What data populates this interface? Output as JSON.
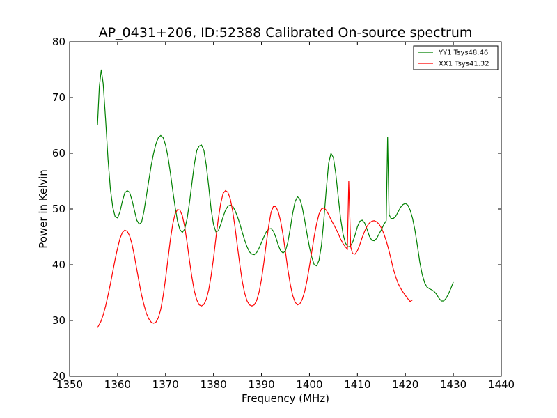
{
  "chart_data": {
    "type": "line",
    "title": "AP_0431+206, ID:52388 Calibrated On-source spectrum",
    "xlabel": "Frequency (MHz)",
    "ylabel": "Power in Kelvin",
    "xlim": [
      1350,
      1440
    ],
    "ylim": [
      20,
      80
    ],
    "x_ticks": [
      1350,
      1360,
      1370,
      1380,
      1390,
      1400,
      1410,
      1420,
      1430,
      1440
    ],
    "y_ticks": [
      20,
      30,
      40,
      50,
      60,
      70,
      80
    ],
    "grid": false,
    "legend_position": "top-right",
    "series": [
      {
        "name": "YY1 Tsys48.46",
        "color": "#008000",
        "points": [
          [
            1355.8,
            65
          ],
          [
            1356.2,
            72
          ],
          [
            1356.6,
            75
          ],
          [
            1357.0,
            72.5
          ],
          [
            1357.5,
            66
          ],
          [
            1358.0,
            59
          ],
          [
            1358.5,
            53.5
          ],
          [
            1359.0,
            50.3
          ],
          [
            1359.5,
            48.6
          ],
          [
            1360.0,
            48.4
          ],
          [
            1360.5,
            49.5
          ],
          [
            1361.0,
            51.4
          ],
          [
            1361.5,
            52.9
          ],
          [
            1362.0,
            53.3
          ],
          [
            1362.5,
            53.0
          ],
          [
            1363.0,
            51.6
          ],
          [
            1363.5,
            49.8
          ],
          [
            1364.0,
            48.0
          ],
          [
            1364.5,
            47.3
          ],
          [
            1365.0,
            47.6
          ],
          [
            1365.5,
            49.6
          ],
          [
            1366.0,
            52.3
          ],
          [
            1366.5,
            55.1
          ],
          [
            1367.0,
            57.8
          ],
          [
            1367.5,
            60.0
          ],
          [
            1368.0,
            61.7
          ],
          [
            1368.5,
            62.8
          ],
          [
            1369.0,
            63.2
          ],
          [
            1369.5,
            62.8
          ],
          [
            1370.0,
            61.5
          ],
          [
            1370.5,
            59.4
          ],
          [
            1371.0,
            56.5
          ],
          [
            1371.5,
            53.3
          ],
          [
            1372.0,
            50.3
          ],
          [
            1372.5,
            47.8
          ],
          [
            1373.0,
            46.3
          ],
          [
            1373.5,
            45.8
          ],
          [
            1374.0,
            46.4
          ],
          [
            1374.5,
            48.3
          ],
          [
            1375.0,
            51.2
          ],
          [
            1375.5,
            54.7
          ],
          [
            1376.0,
            58.0
          ],
          [
            1376.5,
            60.5
          ],
          [
            1377.0,
            61.3
          ],
          [
            1377.5,
            61.5
          ],
          [
            1378.0,
            60.5
          ],
          [
            1378.5,
            57.8
          ],
          [
            1379.0,
            54.0
          ],
          [
            1379.5,
            50.0
          ],
          [
            1380.0,
            47.2
          ],
          [
            1380.5,
            45.9
          ],
          [
            1381.0,
            46.1
          ],
          [
            1381.5,
            47.2
          ],
          [
            1382.0,
            48.6
          ],
          [
            1382.5,
            49.8
          ],
          [
            1383.0,
            50.5
          ],
          [
            1383.5,
            50.7
          ],
          [
            1384.0,
            50.5
          ],
          [
            1384.5,
            49.7
          ],
          [
            1385.0,
            48.6
          ],
          [
            1385.5,
            47.3
          ],
          [
            1386.0,
            45.8
          ],
          [
            1386.5,
            44.4
          ],
          [
            1387.0,
            43.2
          ],
          [
            1387.5,
            42.3
          ],
          [
            1388.0,
            41.9
          ],
          [
            1388.5,
            41.8
          ],
          [
            1389.0,
            42.2
          ],
          [
            1389.5,
            43.0
          ],
          [
            1390.0,
            44.0
          ],
          [
            1390.5,
            45.0
          ],
          [
            1391.0,
            45.9
          ],
          [
            1391.5,
            46.4
          ],
          [
            1392.0,
            46.5
          ],
          [
            1392.5,
            46.0
          ],
          [
            1393.0,
            44.9
          ],
          [
            1393.5,
            43.5
          ],
          [
            1394.0,
            42.5
          ],
          [
            1394.5,
            42.1
          ],
          [
            1395.0,
            42.5
          ],
          [
            1395.5,
            44.0
          ],
          [
            1396.0,
            46.5
          ],
          [
            1396.5,
            49.2
          ],
          [
            1397.0,
            51.3
          ],
          [
            1397.5,
            52.2
          ],
          [
            1398.0,
            51.8
          ],
          [
            1398.5,
            50.3
          ],
          [
            1399.0,
            48.0
          ],
          [
            1399.5,
            45.5
          ],
          [
            1400.0,
            43.2
          ],
          [
            1400.5,
            41.3
          ],
          [
            1401.0,
            40.0
          ],
          [
            1401.5,
            39.8
          ],
          [
            1402.0,
            40.8
          ],
          [
            1402.5,
            43.5
          ],
          [
            1403.0,
            48.0
          ],
          [
            1403.5,
            53.5
          ],
          [
            1404.0,
            58.2
          ],
          [
            1404.5,
            60.0
          ],
          [
            1405.0,
            59.2
          ],
          [
            1405.5,
            56.3
          ],
          [
            1406.0,
            52.2
          ],
          [
            1406.5,
            48.3
          ],
          [
            1407.0,
            45.5
          ],
          [
            1407.5,
            43.9
          ],
          [
            1408.0,
            43.2
          ],
          [
            1408.5,
            43.3
          ],
          [
            1409.0,
            44.0
          ],
          [
            1409.5,
            45.3
          ],
          [
            1410.0,
            46.8
          ],
          [
            1410.5,
            47.8
          ],
          [
            1411.0,
            48.0
          ],
          [
            1411.5,
            47.5
          ],
          [
            1412.0,
            46.4
          ],
          [
            1412.5,
            45.1
          ],
          [
            1413.0,
            44.4
          ],
          [
            1413.5,
            44.3
          ],
          [
            1414.0,
            44.7
          ],
          [
            1414.5,
            45.5
          ],
          [
            1415.0,
            46.3
          ],
          [
            1415.5,
            47.2
          ],
          [
            1416.0,
            47.9
          ],
          [
            1416.3,
            63.0
          ],
          [
            1416.6,
            49.0
          ],
          [
            1417.0,
            48.3
          ],
          [
            1417.5,
            48.3
          ],
          [
            1418.0,
            48.7
          ],
          [
            1418.5,
            49.5
          ],
          [
            1419.0,
            50.3
          ],
          [
            1419.5,
            50.8
          ],
          [
            1420.0,
            51.0
          ],
          [
            1420.5,
            50.7
          ],
          [
            1421.0,
            49.8
          ],
          [
            1421.5,
            48.3
          ],
          [
            1422.0,
            46.2
          ],
          [
            1422.5,
            43.5
          ],
          [
            1423.0,
            40.5
          ],
          [
            1423.5,
            38.3
          ],
          [
            1424.0,
            36.8
          ],
          [
            1424.5,
            36.0
          ],
          [
            1425.0,
            35.7
          ],
          [
            1425.5,
            35.5
          ],
          [
            1426.0,
            35.2
          ],
          [
            1426.5,
            34.7
          ],
          [
            1427.0,
            34.0
          ],
          [
            1427.5,
            33.5
          ],
          [
            1428.0,
            33.5
          ],
          [
            1428.5,
            34.0
          ],
          [
            1429.0,
            34.8
          ],
          [
            1429.5,
            35.8
          ],
          [
            1430.0,
            36.9
          ]
        ]
      },
      {
        "name": "XX1 Tsys41.32",
        "color": "#ff0000",
        "points": [
          [
            1355.8,
            28.7
          ],
          [
            1356.5,
            29.8
          ],
          [
            1357.0,
            31.0
          ],
          [
            1357.5,
            32.6
          ],
          [
            1358.0,
            34.5
          ],
          [
            1358.5,
            36.6
          ],
          [
            1359.0,
            38.8
          ],
          [
            1359.5,
            41.0
          ],
          [
            1360.0,
            43.0
          ],
          [
            1360.5,
            44.7
          ],
          [
            1361.0,
            45.8
          ],
          [
            1361.5,
            46.2
          ],
          [
            1362.0,
            46.0
          ],
          [
            1362.5,
            45.2
          ],
          [
            1363.0,
            43.7
          ],
          [
            1363.5,
            41.6
          ],
          [
            1364.0,
            39.2
          ],
          [
            1364.5,
            36.8
          ],
          [
            1365.0,
            34.6
          ],
          [
            1365.5,
            32.8
          ],
          [
            1366.0,
            31.3
          ],
          [
            1366.5,
            30.3
          ],
          [
            1367.0,
            29.7
          ],
          [
            1367.5,
            29.5
          ],
          [
            1368.0,
            29.7
          ],
          [
            1368.5,
            30.5
          ],
          [
            1369.0,
            32.0
          ],
          [
            1369.5,
            34.4
          ],
          [
            1370.0,
            37.5
          ],
          [
            1370.5,
            41.0
          ],
          [
            1371.0,
            44.5
          ],
          [
            1371.5,
            47.3
          ],
          [
            1372.0,
            49.2
          ],
          [
            1372.5,
            49.9
          ],
          [
            1373.0,
            49.8
          ],
          [
            1373.5,
            48.8
          ],
          [
            1374.0,
            46.8
          ],
          [
            1374.5,
            43.9
          ],
          [
            1375.0,
            40.7
          ],
          [
            1375.5,
            37.7
          ],
          [
            1376.0,
            35.3
          ],
          [
            1376.5,
            33.7
          ],
          [
            1377.0,
            32.8
          ],
          [
            1377.5,
            32.6
          ],
          [
            1378.0,
            32.9
          ],
          [
            1378.5,
            33.8
          ],
          [
            1379.0,
            35.5
          ],
          [
            1379.5,
            38.0
          ],
          [
            1380.0,
            41.2
          ],
          [
            1380.5,
            44.8
          ],
          [
            1381.0,
            48.3
          ],
          [
            1381.5,
            51.0
          ],
          [
            1382.0,
            52.8
          ],
          [
            1382.5,
            53.3
          ],
          [
            1383.0,
            53.0
          ],
          [
            1383.5,
            51.8
          ],
          [
            1384.0,
            49.6
          ],
          [
            1384.5,
            46.6
          ],
          [
            1385.0,
            43.2
          ],
          [
            1385.5,
            39.9
          ],
          [
            1386.0,
            37.0
          ],
          [
            1386.5,
            34.9
          ],
          [
            1387.0,
            33.5
          ],
          [
            1387.5,
            32.8
          ],
          [
            1388.0,
            32.6
          ],
          [
            1388.5,
            32.8
          ],
          [
            1389.0,
            33.6
          ],
          [
            1389.5,
            35.1
          ],
          [
            1390.0,
            37.4
          ],
          [
            1390.5,
            40.4
          ],
          [
            1391.0,
            43.8
          ],
          [
            1391.5,
            47.0
          ],
          [
            1392.0,
            49.4
          ],
          [
            1392.5,
            50.5
          ],
          [
            1393.0,
            50.4
          ],
          [
            1393.5,
            49.5
          ],
          [
            1394.0,
            47.8
          ],
          [
            1394.5,
            45.3
          ],
          [
            1395.0,
            42.3
          ],
          [
            1395.5,
            39.2
          ],
          [
            1396.0,
            36.5
          ],
          [
            1396.5,
            34.5
          ],
          [
            1397.0,
            33.3
          ],
          [
            1397.5,
            32.8
          ],
          [
            1398.0,
            33.0
          ],
          [
            1398.5,
            33.8
          ],
          [
            1399.0,
            35.2
          ],
          [
            1399.5,
            37.2
          ],
          [
            1400.0,
            39.7
          ],
          [
            1400.5,
            42.4
          ],
          [
            1401.0,
            45.1
          ],
          [
            1401.5,
            47.4
          ],
          [
            1402.0,
            49.1
          ],
          [
            1402.5,
            50.0
          ],
          [
            1403.0,
            50.2
          ],
          [
            1403.5,
            49.8
          ],
          [
            1404.0,
            49.0
          ],
          [
            1404.5,
            48.1
          ],
          [
            1405.0,
            47.3
          ],
          [
            1405.5,
            46.5
          ],
          [
            1406.0,
            45.6
          ],
          [
            1406.5,
            44.6
          ],
          [
            1407.0,
            43.8
          ],
          [
            1407.5,
            43.2
          ],
          [
            1407.9,
            42.8
          ],
          [
            1408.2,
            55.0
          ],
          [
            1408.6,
            43.2
          ],
          [
            1409.0,
            42.0
          ],
          [
            1409.5,
            41.9
          ],
          [
            1410.0,
            42.5
          ],
          [
            1410.5,
            43.6
          ],
          [
            1411.0,
            44.9
          ],
          [
            1411.5,
            46.0
          ],
          [
            1412.0,
            46.9
          ],
          [
            1412.5,
            47.5
          ],
          [
            1413.0,
            47.8
          ],
          [
            1413.5,
            47.9
          ],
          [
            1414.0,
            47.7
          ],
          [
            1414.5,
            47.3
          ],
          [
            1415.0,
            46.6
          ],
          [
            1415.5,
            45.6
          ],
          [
            1416.0,
            44.3
          ],
          [
            1416.5,
            42.8
          ],
          [
            1417.0,
            41.0
          ],
          [
            1417.5,
            39.2
          ],
          [
            1418.0,
            37.8
          ],
          [
            1418.5,
            36.6
          ],
          [
            1419.0,
            35.8
          ],
          [
            1419.5,
            35.1
          ],
          [
            1420.0,
            34.5
          ],
          [
            1420.5,
            33.9
          ],
          [
            1421.0,
            33.4
          ],
          [
            1421.5,
            33.7
          ]
        ]
      }
    ]
  }
}
